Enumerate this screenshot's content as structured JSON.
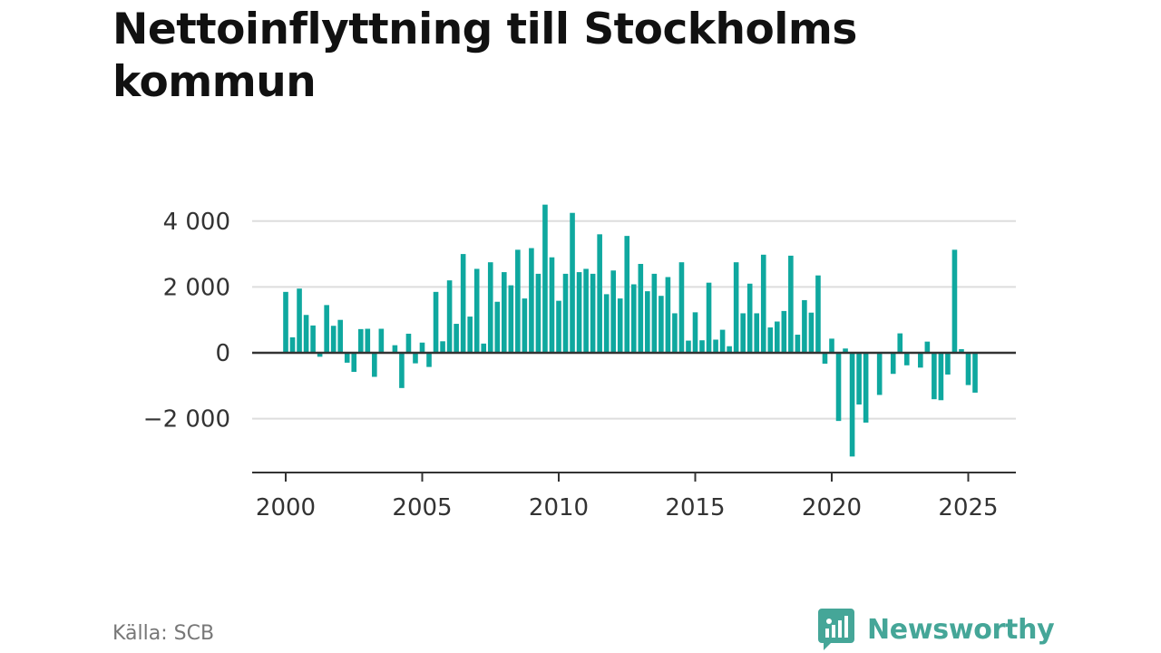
{
  "colors": {
    "bar": "#0fa89f",
    "grid": "#dddddd",
    "zero_line": "#333333",
    "brand": "#45a698"
  },
  "chart_data": {
    "type": "bar",
    "title": "Nettoinflyttning till Stockholms kommun",
    "source": "Källa: SCB",
    "brand": "Newsworthy",
    "granularity": "quarter",
    "start": "2000-Q1",
    "xlim": [
      1999.3,
      2026.8
    ],
    "ylim": [
      -3600,
      4700
    ],
    "x_ticks": [
      2000,
      2005,
      2010,
      2015,
      2020,
      2025
    ],
    "x_tick_labels": [
      "2000",
      "2005",
      "2010",
      "2015",
      "2020",
      "2025"
    ],
    "y_ticks": [
      -2000,
      0,
      2000,
      4000
    ],
    "y_tick_labels": [
      "−2 000",
      "0",
      "2 000",
      "4 000"
    ],
    "grid": true,
    "values": [
      1850,
      470,
      1950,
      1150,
      830,
      -120,
      1450,
      820,
      1000,
      -300,
      -580,
      720,
      730,
      -730,
      730,
      0,
      230,
      -1070,
      580,
      -320,
      310,
      -430,
      1850,
      350,
      2200,
      880,
      3000,
      1100,
      2550,
      280,
      2750,
      1550,
      2450,
      2050,
      3130,
      1650,
      3180,
      2400,
      4500,
      2900,
      1580,
      2400,
      4250,
      2450,
      2550,
      2400,
      3600,
      1780,
      2500,
      1650,
      3550,
      2080,
      2700,
      1870,
      2400,
      1730,
      2300,
      1200,
      2750,
      370,
      1230,
      380,
      2130,
      400,
      700,
      200,
      2750,
      1200,
      2100,
      1200,
      2980,
      770,
      950,
      1270,
      2950,
      550,
      1600,
      1220,
      2350,
      -330,
      430,
      -2070,
      130,
      -3150,
      -1570,
      -2120,
      0,
      -1280,
      0,
      -640,
      590,
      -380,
      0,
      -450,
      340,
      -1410,
      -1440,
      -660,
      3130,
      110,
      -980,
      -1210
    ]
  }
}
